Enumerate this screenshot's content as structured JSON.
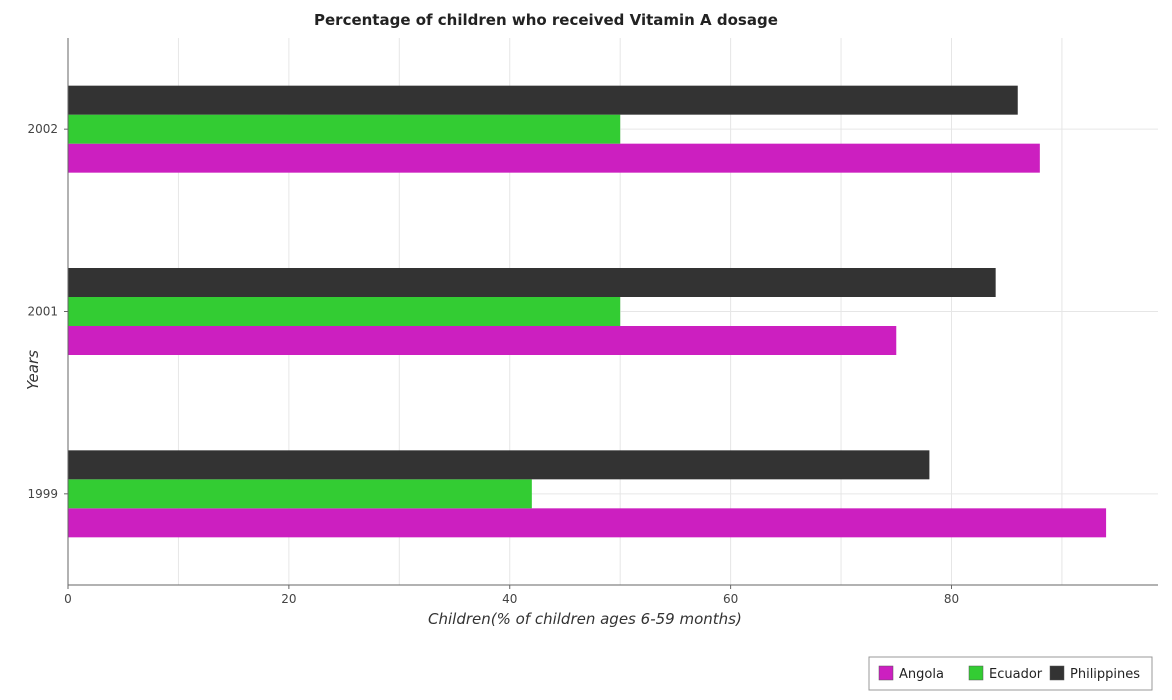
{
  "chart_data": {
    "type": "bar",
    "orientation": "horizontal",
    "title": "Percentage of children who received Vitamin A dosage",
    "xlabel": "Children(% of children ages 6-59 months)",
    "ylabel": "Years",
    "categories": [
      "1999",
      "2001",
      "2002"
    ],
    "series": [
      {
        "name": "Angola",
        "color": "#cc1fc0",
        "values": [
          94,
          75,
          88
        ]
      },
      {
        "name": "Ecuador",
        "color": "#33cc33",
        "values": [
          42,
          50,
          50
        ]
      },
      {
        "name": "Philippines",
        "color": "#333333",
        "values": [
          78,
          84,
          86
        ]
      }
    ],
    "xlim": [
      0,
      98.7
    ],
    "xticks": [
      0,
      20,
      40,
      60,
      80
    ],
    "grid": true,
    "legend_position": "bottom-right"
  }
}
